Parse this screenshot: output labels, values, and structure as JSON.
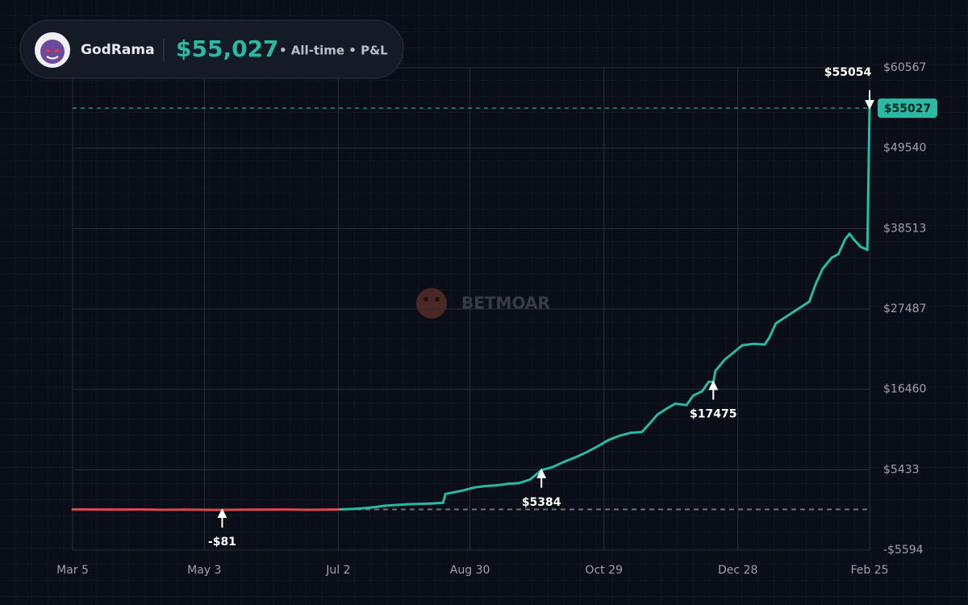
{
  "chart_data": {
    "type": "line",
    "header": {
      "name": "GodRama",
      "pnl": "$55,027",
      "subtitle": "• All-time • P&L"
    },
    "watermark": "BETMOAR",
    "x": [
      0,
      10,
      20,
      30,
      40,
      50,
      60,
      67,
      75,
      85,
      95,
      105,
      115,
      120,
      125,
      130,
      135,
      140,
      150,
      160,
      166,
      167,
      175,
      180,
      185,
      190,
      195,
      200,
      205,
      210,
      215,
      220,
      225,
      230,
      235,
      240,
      245,
      250,
      255,
      258,
      262,
      266,
      270,
      275,
      278,
      282,
      285,
      287,
      288,
      292,
      296,
      300,
      305,
      310,
      312,
      315,
      320,
      325,
      330,
      333,
      336,
      340,
      343,
      346,
      348,
      350,
      353,
      356,
      357,
      357
    ],
    "series": [
      {
        "name": "P&L",
        "color": "#2bb9a3",
        "negative_color": "#e0474c",
        "values": [
          0,
          -20,
          -40,
          -10,
          -60,
          -30,
          -70,
          -81,
          -50,
          -40,
          -20,
          -60,
          -30,
          0,
          50,
          150,
          300,
          500,
          700,
          800,
          900,
          2100,
          2600,
          3000,
          3200,
          3300,
          3500,
          3600,
          4100,
          5384,
          5800,
          6500,
          7100,
          7800,
          8600,
          9500,
          10100,
          10500,
          10600,
          11600,
          13000,
          13800,
          14500,
          14300,
          15600,
          16200,
          17500,
          17475,
          19000,
          20500,
          21500,
          22500,
          22700,
          22600,
          23500,
          25500,
          26500,
          27500,
          28500,
          31000,
          33000,
          34500,
          35000,
          37000,
          37800,
          37000,
          36000,
          35600,
          55054,
          55027
        ]
      }
    ],
    "xlim": [
      0,
      357
    ],
    "xticks": [
      {
        "value": 0,
        "label": "Mar 5"
      },
      {
        "value": 59,
        "label": "May 3"
      },
      {
        "value": 119,
        "label": "Jul 2"
      },
      {
        "value": 178,
        "label": "Aug 30"
      },
      {
        "value": 238,
        "label": "Oct 29"
      },
      {
        "value": 298,
        "label": "Dec 28"
      },
      {
        "value": 357,
        "label": "Feb 25"
      }
    ],
    "ylim": [
      -5594,
      60567
    ],
    "yticks": [
      {
        "value": -5594,
        "label": "-$5594"
      },
      {
        "value": 5433,
        "label": "$5433"
      },
      {
        "value": 16460,
        "label": "$16460"
      },
      {
        "value": 27487,
        "label": "$27487"
      },
      {
        "value": 38513,
        "label": "$38513"
      },
      {
        "value": 49540,
        "label": "$49540"
      },
      {
        "value": 60567,
        "label": "$60567"
      }
    ],
    "grid": true,
    "current": {
      "value": 55027,
      "label": "$55027",
      "color": "#2bb9a3"
    },
    "annotations": [
      {
        "x": 67,
        "value": -81,
        "label": "-$81",
        "direction": "down"
      },
      {
        "x": 210,
        "value": 5384,
        "label": "$5384",
        "direction": "down"
      },
      {
        "x": 287,
        "value": 17475,
        "label": "$17475",
        "direction": "down"
      },
      {
        "x": 357,
        "value": 55054,
        "label": "$55054",
        "direction": "up"
      }
    ]
  }
}
